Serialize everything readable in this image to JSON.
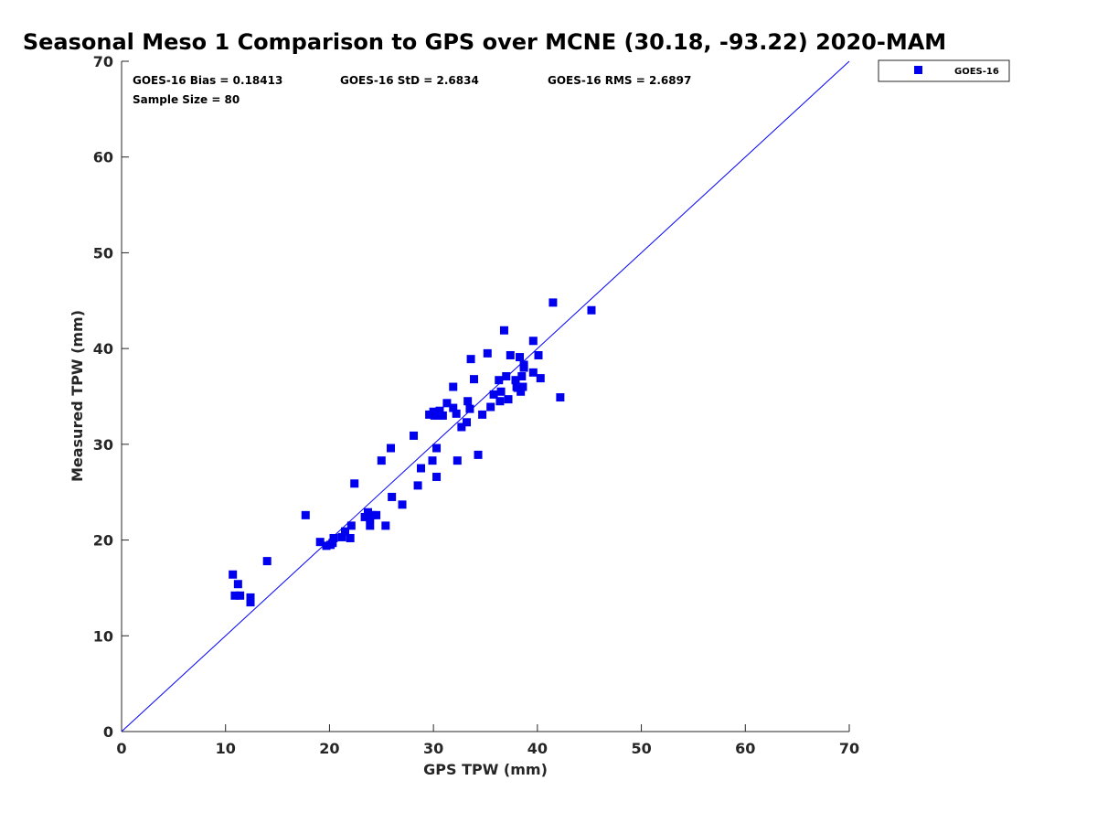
{
  "chart_data": {
    "type": "scatter",
    "title": "Seasonal Meso 1 Comparison to GPS over MCNE (30.18, -93.22) 2020-MAM",
    "xlabel": "GPS TPW (mm)",
    "ylabel": "Measured TPW (mm)",
    "xlim": [
      0,
      70
    ],
    "ylim": [
      0,
      70
    ],
    "xticks": [
      "0",
      "10",
      "20",
      "30",
      "40",
      "50",
      "60",
      "70"
    ],
    "yticks": [
      "0",
      "10",
      "20",
      "30",
      "40",
      "50",
      "60",
      "70"
    ],
    "grid": false,
    "legend_placement": "outside-top-right",
    "reference_line": {
      "x": [
        0,
        70
      ],
      "y": [
        0,
        70
      ],
      "color": "#0000ff"
    },
    "stats": {
      "bias": "GOES-16 Bias = 0.18413",
      "std": "GOES-16 StD = 2.6834",
      "rms": "GOES-16 RMS = 2.6897",
      "sample_size": "Sample Size = 80"
    },
    "series": [
      {
        "name": "GOES-16",
        "color": "#0000ee",
        "marker": "square",
        "points": [
          [
            10.7,
            16.4
          ],
          [
            10.9,
            14.2
          ],
          [
            11.2,
            15.4
          ],
          [
            11.4,
            14.2
          ],
          [
            12.4,
            14.0
          ],
          [
            12.4,
            13.5
          ],
          [
            14.0,
            17.8
          ],
          [
            17.7,
            22.6
          ],
          [
            19.1,
            19.8
          ],
          [
            19.7,
            19.4
          ],
          [
            20.1,
            19.5
          ],
          [
            20.3,
            19.7
          ],
          [
            20.4,
            20.2
          ],
          [
            21.2,
            20.3
          ],
          [
            21.5,
            20.9
          ],
          [
            22.0,
            20.2
          ],
          [
            22.1,
            21.5
          ],
          [
            22.4,
            25.9
          ],
          [
            23.4,
            22.4
          ],
          [
            23.7,
            22.9
          ],
          [
            23.9,
            22.3
          ],
          [
            23.9,
            21.5
          ],
          [
            24.1,
            22.6
          ],
          [
            24.5,
            22.6
          ],
          [
            25.0,
            28.3
          ],
          [
            25.4,
            21.5
          ],
          [
            25.9,
            29.6
          ],
          [
            27.0,
            23.7
          ],
          [
            28.1,
            30.9
          ],
          [
            28.5,
            25.7
          ],
          [
            29.6,
            33.1
          ],
          [
            29.9,
            28.3
          ],
          [
            30.0,
            33.4
          ],
          [
            30.1,
            33.0
          ],
          [
            30.3,
            29.6
          ],
          [
            30.3,
            26.6
          ],
          [
            30.5,
            33.0
          ],
          [
            30.6,
            33.5
          ],
          [
            30.9,
            33.0
          ],
          [
            31.3,
            34.3
          ],
          [
            31.9,
            33.8
          ],
          [
            31.9,
            36.0
          ],
          [
            32.2,
            33.2
          ],
          [
            32.3,
            28.3
          ],
          [
            32.7,
            31.8
          ],
          [
            33.2,
            32.3
          ],
          [
            33.3,
            34.5
          ],
          [
            33.5,
            33.7
          ],
          [
            33.6,
            38.9
          ],
          [
            34.3,
            28.9
          ],
          [
            34.7,
            33.1
          ],
          [
            35.2,
            39.5
          ],
          [
            35.5,
            33.9
          ],
          [
            36.3,
            36.7
          ],
          [
            36.4,
            34.5
          ],
          [
            36.5,
            35.5
          ],
          [
            36.8,
            41.9
          ],
          [
            37.0,
            37.1
          ],
          [
            37.2,
            34.7
          ],
          [
            37.4,
            39.3
          ],
          [
            37.9,
            36.7
          ],
          [
            38.0,
            36.0
          ],
          [
            38.1,
            35.9
          ],
          [
            38.3,
            39.1
          ],
          [
            38.4,
            35.5
          ],
          [
            38.5,
            37.1
          ],
          [
            38.6,
            36.0
          ],
          [
            38.7,
            38.0
          ],
          [
            38.7,
            38.3
          ],
          [
            39.6,
            40.8
          ],
          [
            39.6,
            37.5
          ],
          [
            40.1,
            39.3
          ],
          [
            40.3,
            36.9
          ],
          [
            41.5,
            44.8
          ],
          [
            42.2,
            34.9
          ],
          [
            45.2,
            44.0
          ],
          [
            26.0,
            24.5
          ],
          [
            28.8,
            27.5
          ],
          [
            35.8,
            35.2
          ],
          [
            33.9,
            36.8
          ]
        ]
      }
    ]
  }
}
